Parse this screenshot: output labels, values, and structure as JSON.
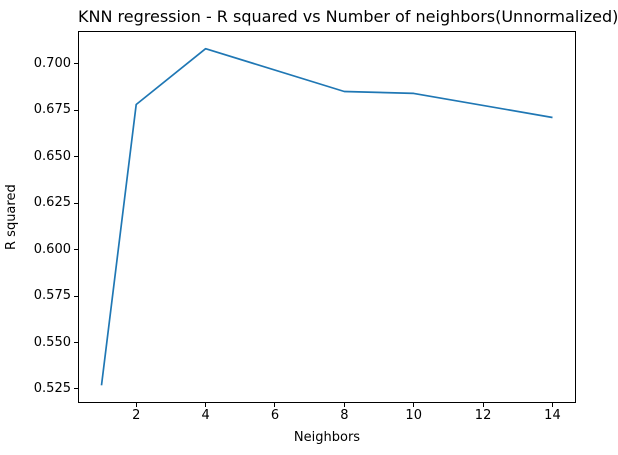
{
  "chart_data": {
    "type": "line",
    "title": "KNN regression - R squared vs Number of neighbors(Unnormalized)",
    "xlabel": "Neighbors",
    "ylabel": "R squared",
    "x": [
      1,
      2,
      4,
      8,
      10,
      14
    ],
    "y": [
      0.527,
      0.678,
      0.708,
      0.685,
      0.684,
      0.671
    ],
    "xticks": [
      2,
      4,
      6,
      8,
      10,
      12,
      14
    ],
    "yticks": [
      0.525,
      0.55,
      0.575,
      0.6,
      0.625,
      0.65,
      0.675,
      0.7
    ],
    "xlim": [
      0.35,
      14.65
    ],
    "ylim": [
      0.518,
      0.717
    ],
    "line_color": "#1f77b4",
    "axis_color": "#000000",
    "background_color": "#ffffff",
    "grid": false,
    "legend": "none"
  }
}
